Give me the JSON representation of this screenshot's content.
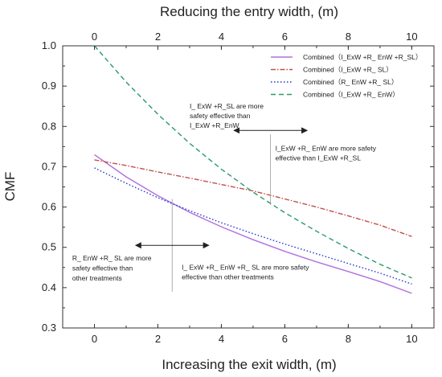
{
  "chart_data": {
    "type": "line",
    "xlabel": "Increasing the exit width, (m)",
    "x2label": "Reducing the entry width, (m)",
    "ylabel": "CMF",
    "xlim": [
      -1,
      10.7
    ],
    "ylim": [
      0.3,
      1.0
    ],
    "x_ticks": [
      0,
      2,
      4,
      6,
      8,
      10
    ],
    "x_tick_labels": [
      "0",
      "2",
      "4",
      "6",
      "8",
      "10"
    ],
    "x2_ticks": [
      0,
      2,
      4,
      6,
      8,
      10
    ],
    "x2_tick_labels": [
      "0",
      "2",
      "4",
      "6",
      "8",
      "10"
    ],
    "y_ticks": [
      0.3,
      0.4,
      0.5,
      0.6,
      0.7,
      0.8,
      0.9,
      1.0
    ],
    "y_tick_labels": [
      "0.3",
      "0.4",
      "0.5",
      "0.6",
      "0.7",
      "0.8",
      "0.9",
      "1.0"
    ],
    "grid": false,
    "legend_position": "top-right",
    "series": [
      {
        "name": "Combined（I_ExW +R_ EnW +R_SL）",
        "color": "#b070e0",
        "dash": "solid",
        "x": [
          0,
          1,
          2,
          3,
          4,
          5,
          6,
          7,
          8,
          9,
          10
        ],
        "y": [
          0.73,
          0.675,
          0.628,
          0.587,
          0.551,
          0.519,
          0.49,
          0.464,
          0.44,
          0.415,
          0.386
        ]
      },
      {
        "name": "Combined（I_ExW +R_ SL）",
        "color": "#c0504d",
        "dash": "dashdot",
        "x": [
          0,
          1,
          2,
          3,
          4,
          5,
          6,
          7,
          8,
          9,
          10
        ],
        "y": [
          0.717,
          0.703,
          0.687,
          0.672,
          0.656,
          0.64,
          0.62,
          0.6,
          0.578,
          0.555,
          0.527
        ]
      },
      {
        "name": "Combined（R_ EnW +R_ SL）",
        "color": "#2233cc",
        "dash": "dotted",
        "x": [
          0,
          1,
          2,
          3,
          4,
          5,
          6,
          7,
          8,
          9,
          10
        ],
        "y": [
          0.697,
          0.659,
          0.623,
          0.591,
          0.561,
          0.534,
          0.508,
          0.484,
          0.46,
          0.436,
          0.409
        ]
      },
      {
        "name": "Combined（I_ExW +R_ EnW）",
        "color": "#2a9a6a",
        "dash": "dashed",
        "x": [
          0,
          1,
          2,
          3,
          4,
          5,
          6,
          7,
          8,
          9,
          10
        ],
        "y": [
          1.0,
          0.91,
          0.83,
          0.758,
          0.694,
          0.637,
          0.586,
          0.54,
          0.497,
          0.458,
          0.424
        ]
      }
    ],
    "annotations": [
      {
        "lines": [
          "I_ ExW +R_SL  are more",
          "safety effective than",
          "I_ExW +R_EnW"
        ]
      },
      {
        "lines": [
          "I_ExW +R_ EnW  are more safety",
          "effective than I_ExW +R_SL"
        ]
      },
      {
        "lines": [
          "R_ EnW +R_ SL are more",
          "safety effective than",
          "other treatments"
        ]
      },
      {
        "lines": [
          "I_ ExW +R_ EnW +R_ SL are more safety",
          "effective than other treatments"
        ]
      }
    ]
  }
}
